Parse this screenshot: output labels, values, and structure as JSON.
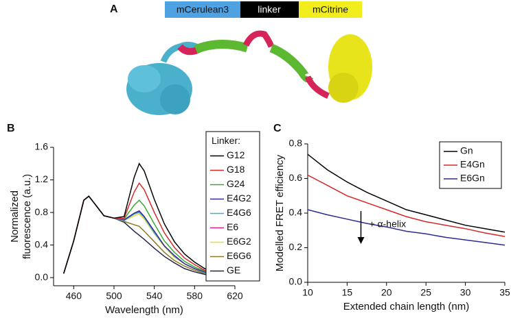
{
  "panel_a": {
    "label": "A",
    "segments": [
      "mCerulean3",
      "linker",
      "mCitrine"
    ]
  },
  "chart_data": [
    {
      "type": "line",
      "panel_label": "B",
      "xlabel": "Wavelength (nm)",
      "ylabel": [
        "Normalized",
        "fluorescence (a.u.)"
      ],
      "x": [
        450,
        460,
        470,
        475,
        480,
        490,
        500,
        510,
        520,
        525,
        530,
        540,
        550,
        560,
        570,
        580,
        590,
        600
      ],
      "xlim": [
        440,
        620
      ],
      "xticks": [
        460,
        500,
        540,
        580,
        620
      ],
      "ylim": [
        -0.1,
        1.6
      ],
      "yticks": [
        {
          "value": 0,
          "label": "0.0"
        },
        0.4,
        0.8,
        1.2,
        1.6
      ],
      "legend_title": "Linker:",
      "series": [
        {
          "name": "G12",
          "color": "#000000",
          "values": [
            0.05,
            0.45,
            0.95,
            1.0,
            0.92,
            0.76,
            0.73,
            0.75,
            1.23,
            1.4,
            1.31,
            0.96,
            0.66,
            0.44,
            0.29,
            0.19,
            0.11,
            0.06
          ]
        },
        {
          "name": "G18",
          "color": "#d62728",
          "values": [
            0.05,
            0.45,
            0.95,
            1.0,
            0.92,
            0.76,
            0.73,
            0.73,
            1.05,
            1.16,
            1.08,
            0.8,
            0.55,
            0.37,
            0.24,
            0.16,
            0.09,
            0.05
          ]
        },
        {
          "name": "G24",
          "color": "#3aa836",
          "values": [
            0.05,
            0.45,
            0.95,
            1.0,
            0.92,
            0.76,
            0.73,
            0.72,
            0.89,
            0.95,
            0.88,
            0.66,
            0.45,
            0.31,
            0.2,
            0.13,
            0.08,
            0.04
          ]
        },
        {
          "name": "E4G2",
          "color": "#3b2a90",
          "values": [
            0.05,
            0.45,
            0.95,
            1.0,
            0.92,
            0.76,
            0.73,
            0.71,
            0.79,
            0.82,
            0.75,
            0.57,
            0.39,
            0.27,
            0.17,
            0.11,
            0.07,
            0.03
          ]
        },
        {
          "name": "E4G6",
          "color": "#3fa9e6",
          "values": [
            0.05,
            0.45,
            0.95,
            1.0,
            0.92,
            0.76,
            0.73,
            0.7,
            0.78,
            0.8,
            0.74,
            0.55,
            0.39,
            0.26,
            0.17,
            0.11,
            0.06,
            0.03
          ]
        },
        {
          "name": "E6",
          "color": "#d81f8c",
          "values": [
            0.05,
            0.45,
            0.95,
            1.0,
            0.92,
            0.76,
            0.73,
            0.71,
            0.78,
            0.81,
            0.74,
            0.56,
            0.39,
            0.26,
            0.17,
            0.11,
            0.06,
            0.03
          ]
        },
        {
          "name": "E6G2",
          "color": "#e5e022",
          "values": [
            0.05,
            0.45,
            0.95,
            1.0,
            0.92,
            0.76,
            0.73,
            0.7,
            0.76,
            0.78,
            0.72,
            0.54,
            0.38,
            0.25,
            0.17,
            0.11,
            0.06,
            0.03
          ]
        },
        {
          "name": "E6G6",
          "color": "#8c7a22",
          "values": [
            0.05,
            0.45,
            0.95,
            1.0,
            0.92,
            0.76,
            0.73,
            0.69,
            0.65,
            0.63,
            0.57,
            0.44,
            0.31,
            0.21,
            0.14,
            0.09,
            0.05,
            0.03
          ]
        },
        {
          "name": "GE",
          "color": "#22224a",
          "values": [
            0.05,
            0.45,
            0.95,
            1.0,
            0.92,
            0.76,
            0.73,
            0.68,
            0.57,
            0.52,
            0.47,
            0.36,
            0.26,
            0.18,
            0.11,
            0.07,
            0.04,
            0.02
          ]
        }
      ]
    },
    {
      "type": "line",
      "panel_label": "C",
      "xlabel": "Extended chain length (nm)",
      "ylabel": [
        "Modelled FRET efficiency"
      ],
      "x": [
        10,
        12.5,
        15,
        17.5,
        20,
        22.5,
        25,
        27.5,
        30,
        32.5,
        35
      ],
      "xlim": [
        10,
        35
      ],
      "xticks": [
        10,
        15,
        20,
        25,
        30,
        35
      ],
      "ylim": [
        0,
        0.8
      ],
      "yticks": [
        {
          "value": 0,
          "label": "0.0"
        },
        0.2,
        0.4,
        0.6,
        0.8
      ],
      "annotation": "+ α-helix",
      "series": [
        {
          "name": "Gn",
          "color": "#000000",
          "values": [
            0.74,
            0.65,
            0.58,
            0.52,
            0.47,
            0.42,
            0.39,
            0.36,
            0.33,
            0.31,
            0.29
          ]
        },
        {
          "name": "E4Gn",
          "color": "#d62728",
          "values": [
            0.62,
            0.56,
            0.5,
            0.46,
            0.42,
            0.38,
            0.35,
            0.33,
            0.31,
            0.285,
            0.265
          ]
        },
        {
          "name": "E6Gn",
          "color": "#2a2a90",
          "values": [
            0.42,
            0.39,
            0.365,
            0.34,
            0.32,
            0.295,
            0.28,
            0.26,
            0.245,
            0.23,
            0.215
          ]
        }
      ]
    }
  ]
}
